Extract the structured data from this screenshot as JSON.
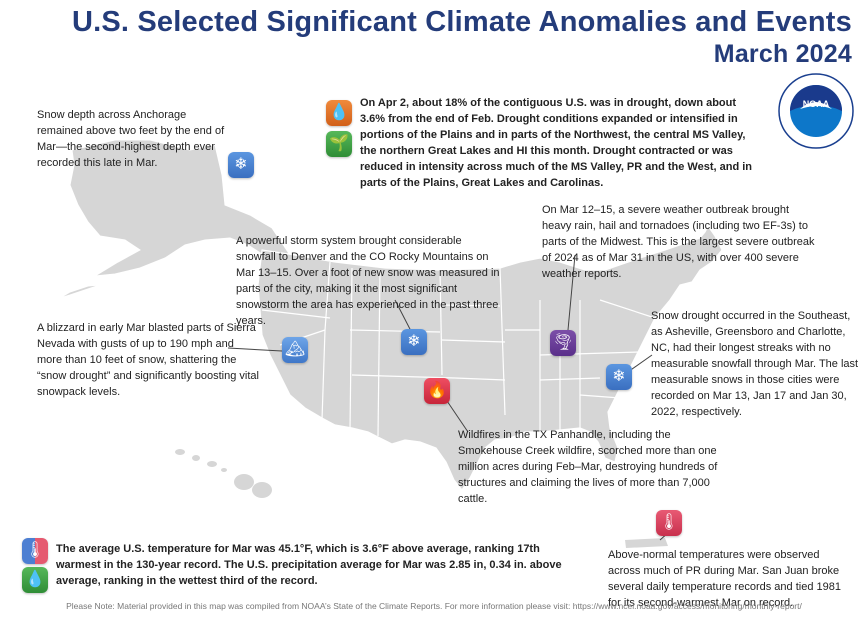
{
  "title": {
    "line1": "U.S. Selected Significant Climate Anomalies and Events",
    "line2": "March 2024"
  },
  "colors": {
    "title": "#243c7a",
    "land": "#d6d6d6",
    "borders": "#ffffff",
    "snow_icon": "#4a82d0",
    "fire_icon": "#d9344a",
    "tornado_icon": "#6a3f9a",
    "drought_icon": "#e2702a",
    "moisture_icon": "#41a348"
  },
  "logo": {
    "text": "NOAA",
    "ring_text": "NATIONAL OCEANIC AND ATMOSPHERIC ADMINISTRATION · U.S. DEPARTMENT OF COMMERCE"
  },
  "notes": {
    "drought": "On Apr 2, about 18% of the contiguous U.S. was in drought, down about 3.6% from the end of Feb. Drought conditions expanded or intensified in portions of the Plains and in parts of the Northwest, the central MS Valley, the northern Great Lakes and HI this month. Drought contracted or was reduced in intensity across much of the MS Valley, PR and the West, and in parts of the Plains, Great Lakes and Carolinas.",
    "anchorage": "Snow depth across Anchorage remained above two feet by the end of Mar—the second-highest depth ever recorded this late in Mar.",
    "denver": "A powerful storm system brought considerable snowfall to Denver and the CO Rocky Mountains on Mar 13–15. Over a foot of new snow was measured in parts of the city, making it the most significant snowstorm the area has experienced in the past three years.",
    "midwest": "On Mar 12–15, a severe weather outbreak brought heavy rain, hail and tornadoes (including two EF-3s) to parts of the Midwest. This is the largest severe outbreak of 2024 as of Mar 31 in the US, with over 400 severe weather reports.",
    "sierra": "A blizzard in early Mar blasted parts of Sierra Nevada with gusts of up to 190 mph and more than 10 feet of snow, shattering the “snow drought” and significantly boosting vital snowpack levels.",
    "southeast": "Snow drought occurred in the Southeast, as Asheville, Greensboro and Charlotte, NC, had their longest streaks with no measurable snowfall through Mar. The last measurable snows in those cities were recorded on Mar 13, Jan 17 and Jan 30, 2022, respectively.",
    "texas": "Wildfires in the TX Panhandle, including the Smokehouse Creek wildfire, scorched more than one million acres during Feb–Mar, destroying hundreds of structures and claiming the lives of more than 7,000 cattle.",
    "national": "The average U.S. temperature for Mar was 45.1°F, which is 3.6°F above average, ranking 17th warmest in the 130-year record. The U.S. precipitation average for Mar was 2.85 in, 0.34 in. above average, ranking in the wettest third of the record.",
    "pr": "Above-normal temperatures were observed across much of PR during Mar. San Juan broke several daily temperature records and tied 1981 for its second-warmest Mar on record."
  },
  "icons": {
    "drought": "water-drop-icon",
    "moisture": "sprout-icon",
    "anchorage": "snowflake-icon",
    "denver": "snowflake-icon",
    "sierra": "snowy-mountain-icon",
    "midwest": "tornado-icon",
    "southeast": "snowflake-icon",
    "texas": "fire-icon",
    "temperature": "thermometer-icon",
    "precipitation": "water-drop-icon",
    "pr": "thermometer-icon"
  },
  "footer": "Please Note: Material provided in this map was compiled from NOAA’s State of the Climate Reports. For more information please visit: https://www.ncei.noaa.gov/access/monitoring/monthly-report/"
}
